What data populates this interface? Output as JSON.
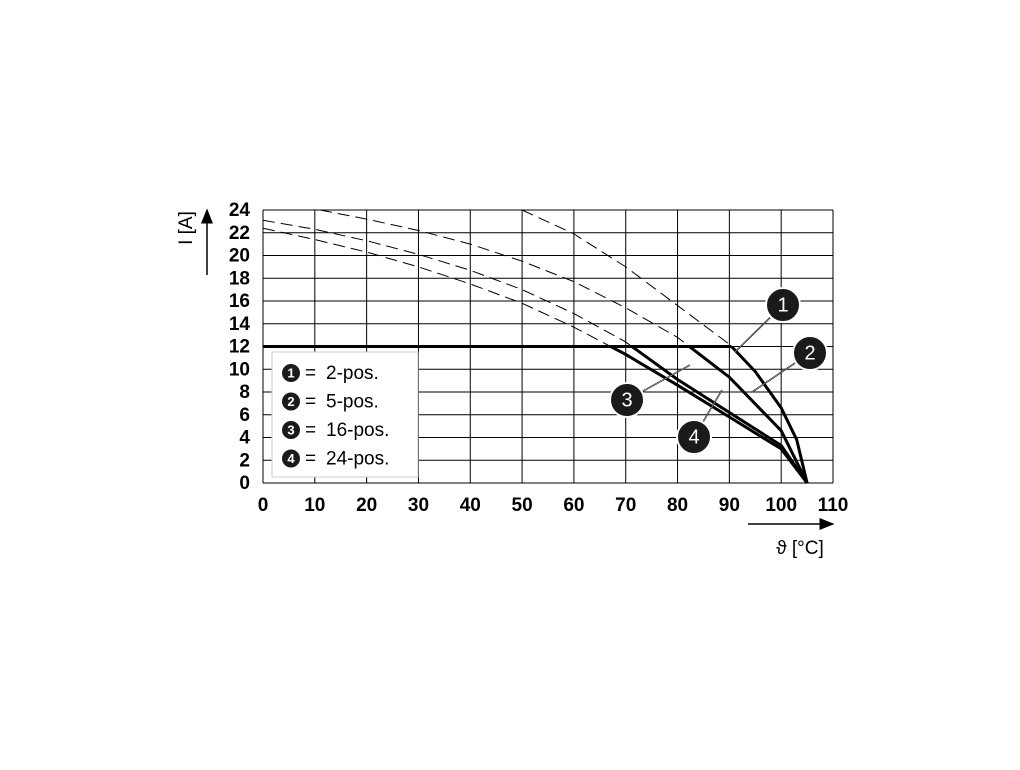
{
  "chart_data": {
    "type": "line",
    "x_label": "ϑ [°C]",
    "y_label": "I [A]",
    "xlim": [
      0,
      110
    ],
    "xticks": [
      0,
      10,
      20,
      30,
      40,
      50,
      60,
      70,
      80,
      90,
      100,
      110
    ],
    "ylim": [
      0,
      24
    ],
    "yticks": [
      0,
      2,
      4,
      6,
      8,
      10,
      12,
      14,
      16,
      18,
      20,
      22,
      24
    ],
    "grid": true,
    "limit": 12,
    "legend_sign": "=",
    "legend_position": "lower left",
    "series": [
      {
        "name": "2-pos.",
        "marker": "1",
        "color": "#000000",
        "x": [
          50,
          60,
          70,
          80,
          90,
          95,
          100,
          103,
          105
        ],
        "values": [
          24,
          21.9,
          19,
          15.6,
          12.2,
          9.8,
          6.6,
          3.8,
          0
        ]
      },
      {
        "name": "5-pos.",
        "marker": "2",
        "color": "#000000",
        "x": [
          11,
          20,
          30,
          40,
          50,
          60,
          70,
          80,
          90,
          100,
          105
        ],
        "values": [
          24,
          23.2,
          22.2,
          21,
          19.5,
          17.7,
          15.4,
          12.8,
          9.3,
          4.6,
          0
        ]
      },
      {
        "name": "16-pos.",
        "marker": "3",
        "color": "#000000",
        "x": [
          0,
          10,
          20,
          30,
          40,
          50,
          60,
          70,
          80,
          90,
          100,
          105
        ],
        "values": [
          23.1,
          22.3,
          21.3,
          20.1,
          18.7,
          17,
          14.9,
          12.4,
          9.1,
          6.2,
          3.3,
          0
        ]
      },
      {
        "name": "24-pos.",
        "marker": "4",
        "color": "#000000",
        "x": [
          0,
          10,
          20,
          30,
          40,
          50,
          60,
          70,
          80,
          90,
          100,
          105
        ],
        "values": [
          22.4,
          21.4,
          20.3,
          19,
          17.5,
          15.8,
          13.7,
          11.3,
          8.6,
          5.8,
          3,
          0
        ]
      }
    ]
  }
}
